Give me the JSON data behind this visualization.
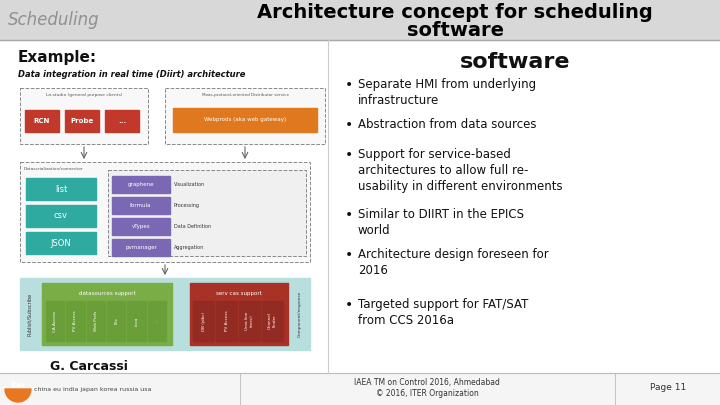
{
  "title_left": "Scheduling",
  "title_main_line1": "Architecture concept for scheduling",
  "title_main_line2": "software",
  "example_label": "Example:",
  "diirt_label": "Data integration in real time (Diirt) architecture",
  "author": "G. Carcassi",
  "bullets": [
    "Separate HMI from underlying\ninfrastructure",
    "Abstraction from data sources",
    "Support for service-based\narchitectures to allow full re-\nusability in different environments",
    "Similar to DIIRT in the EPICS\nworld",
    "Architecture design foreseen for\n2016",
    "Targeted support for FAT/SAT\nfrom CCS 2016a"
  ],
  "footer_left_line1": "IAEA TM on Control 2016, Ahmedabad",
  "footer_left_line2": "© 2016, ITER Organization",
  "footer_right": "Page 11",
  "bg_color": "#ffffff",
  "header_bg": "#d8d8d8",
  "title_left_color": "#909090",
  "title_main_color": "#000000",
  "footer_bg": "#f5f5f5",
  "iter_orange": "#e87722",
  "box_red": "#c0392b",
  "box_orange": "#e07820",
  "box_teal": "#2eaaa0",
  "box_purple": "#7b68b5",
  "box_green": "#7aad45",
  "box_dark_red": "#a93226",
  "box_light_blue": "#b8dede",
  "box_green_dark": "#6a9e38",
  "box_darkred_inner": "#922b21"
}
